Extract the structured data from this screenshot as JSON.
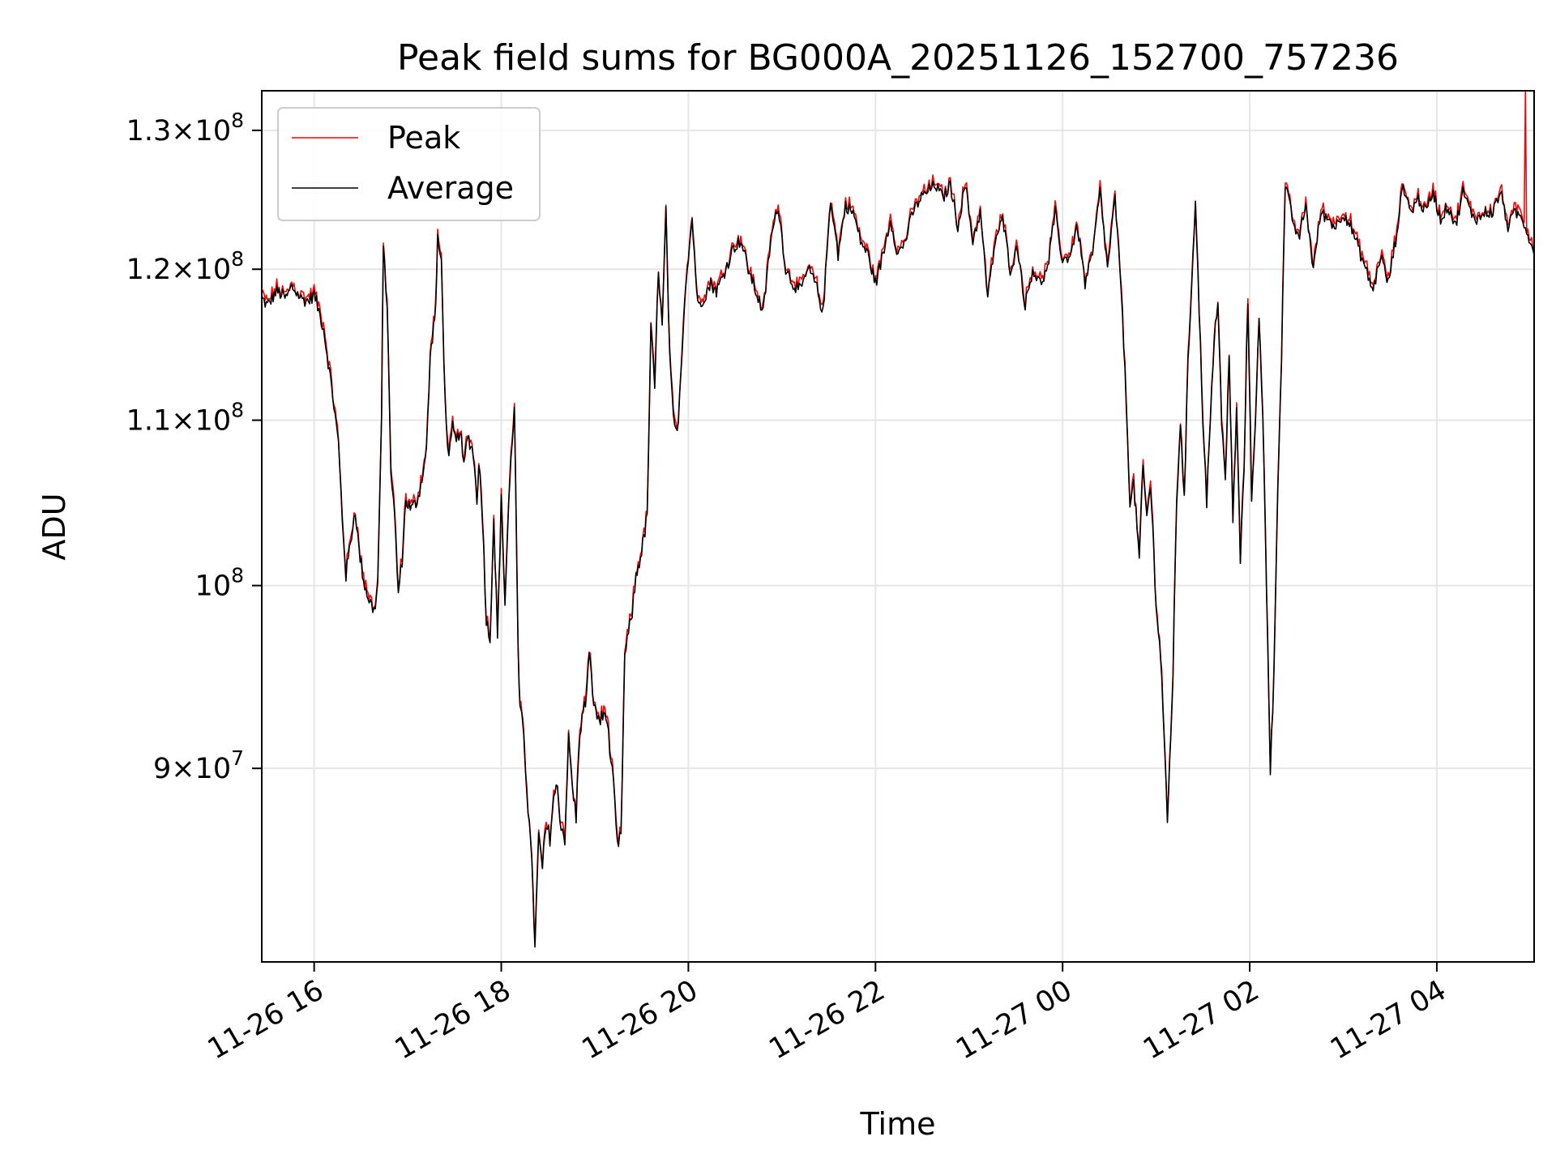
{
  "chart_data": {
    "type": "line",
    "title": "Peak field sums for BG000A_20251126_152700_757236",
    "xlabel": "Time",
    "ylabel": "ADU",
    "yscale": "log",
    "grid": true,
    "legend_position": "top-left",
    "x_range_hours": [
      -0.28,
      6.52
    ],
    "ylim": [
      80500000,
      133000000
    ],
    "x_ticks": [
      {
        "label": "11-26 16",
        "hour": 0
      },
      {
        "label": "11-26 18",
        "hour": 1
      },
      {
        "label": "11-26 20",
        "hour": 2
      },
      {
        "label": "11-26 22",
        "hour": 3
      },
      {
        "label": "11-27 00",
        "hour": 4
      },
      {
        "label": "11-27 02",
        "hour": 5
      },
      {
        "label": "11-27 04",
        "hour": 6
      }
    ],
    "y_ticks": [
      {
        "value": 90000000,
        "base": "9",
        "times": "×10",
        "exp": "7"
      },
      {
        "value": 100000000,
        "base": "",
        "times": "10",
        "exp": "8"
      },
      {
        "value": 110000000,
        "base": "1.1",
        "times": "×10",
        "exp": "8"
      },
      {
        "value": 120000000,
        "base": "1.2",
        "times": "×10",
        "exp": "8"
      },
      {
        "value": 130000000,
        "base": "1.3",
        "times": "×10",
        "exp": "8"
      }
    ],
    "x_unit_note": "x values are in units of 2 hours since 11-26 16:00",
    "series": [
      {
        "name": "Peak",
        "color": "#ff0000"
      },
      {
        "name": "Average",
        "color": "#000000"
      }
    ],
    "average_points": [
      [
        -0.28,
        118.0
      ],
      [
        -0.25,
        117.5
      ],
      [
        -0.2,
        118.5
      ],
      [
        -0.15,
        118.0
      ],
      [
        -0.12,
        118.8
      ],
      [
        -0.07,
        118.0
      ],
      [
        -0.03,
        117.8
      ],
      [
        0.0,
        118.3
      ],
      [
        0.05,
        116.0
      ],
      [
        0.1,
        111.5
      ],
      [
        0.13,
        108.5
      ],
      [
        0.15,
        104.0
      ],
      [
        0.17,
        100.6
      ],
      [
        0.2,
        103.0
      ],
      [
        0.22,
        104.5
      ],
      [
        0.24,
        102.0
      ],
      [
        0.27,
        100.0
      ],
      [
        0.3,
        99.0
      ],
      [
        0.32,
        98.5
      ],
      [
        0.34,
        100.0
      ],
      [
        0.36,
        110.0
      ],
      [
        0.37,
        121.5
      ],
      [
        0.39,
        117.5
      ],
      [
        0.41,
        107.0
      ],
      [
        0.43,
        104.0
      ],
      [
        0.45,
        99.5
      ],
      [
        0.47,
        101.5
      ],
      [
        0.49,
        105.0
      ],
      [
        0.52,
        104.5
      ],
      [
        0.55,
        105.0
      ],
      [
        0.57,
        106.0
      ],
      [
        0.6,
        108.0
      ],
      [
        0.62,
        114.0
      ],
      [
        0.65,
        117.5
      ],
      [
        0.66,
        122.0
      ],
      [
        0.68,
        120.5
      ],
      [
        0.7,
        111.0
      ],
      [
        0.72,
        107.5
      ],
      [
        0.74,
        109.5
      ],
      [
        0.76,
        108.5
      ],
      [
        0.78,
        109.5
      ],
      [
        0.8,
        107.0
      ],
      [
        0.82,
        109.0
      ],
      [
        0.85,
        108.0
      ],
      [
        0.87,
        105.0
      ],
      [
        0.88,
        107.5
      ],
      [
        0.9,
        104.0
      ],
      [
        0.92,
        98.0
      ],
      [
        0.94,
        97.0
      ],
      [
        0.96,
        104.0
      ],
      [
        0.98,
        97.0
      ],
      [
        1.0,
        105.0
      ],
      [
        1.02,
        99.0
      ],
      [
        1.04,
        105.0
      ],
      [
        1.07,
        111.0
      ],
      [
        1.09,
        96.0
      ],
      [
        1.1,
        93.0
      ],
      [
        1.11,
        92.5
      ],
      [
        1.12,
        92.0
      ],
      [
        1.13,
        90.0
      ],
      [
        1.15,
        87.0
      ],
      [
        1.17,
        84.0
      ],
      [
        1.18,
        81.0
      ],
      [
        1.2,
        86.5
      ],
      [
        1.22,
        85.0
      ],
      [
        1.24,
        87.0
      ],
      [
        1.26,
        86.5
      ],
      [
        1.28,
        88.5
      ],
      [
        1.3,
        89.0
      ],
      [
        1.32,
        87.0
      ],
      [
        1.34,
        86.5
      ],
      [
        1.36,
        91.5
      ],
      [
        1.38,
        89.0
      ],
      [
        1.4,
        87.5
      ],
      [
        1.42,
        92.0
      ],
      [
        1.45,
        93.5
      ],
      [
        1.47,
        96.0
      ],
      [
        1.5,
        93.0
      ],
      [
        1.53,
        92.5
      ],
      [
        1.56,
        93.0
      ],
      [
        1.58,
        91.0
      ],
      [
        1.6,
        89.0
      ],
      [
        1.62,
        86.0
      ],
      [
        1.64,
        86.5
      ],
      [
        1.66,
        96.0
      ],
      [
        1.7,
        98.5
      ],
      [
        1.72,
        100.5
      ],
      [
        1.75,
        102.0
      ],
      [
        1.78,
        104.0
      ],
      [
        1.8,
        116.0
      ],
      [
        1.82,
        112.0
      ],
      [
        1.84,
        120.0
      ],
      [
        1.86,
        116.0
      ],
      [
        1.88,
        124.0
      ],
      [
        1.9,
        114.0
      ],
      [
        1.92,
        110.0
      ],
      [
        1.94,
        109.0
      ],
      [
        1.96,
        113.0
      ],
      [
        1.98,
        118.0
      ],
      [
        2.0,
        121.0
      ],
      [
        2.02,
        123.5
      ],
      [
        2.05,
        117.5
      ],
      [
        2.08,
        118.0
      ],
      [
        2.12,
        119.0
      ],
      [
        2.15,
        118.5
      ],
      [
        2.2,
        120.0
      ],
      [
        2.24,
        121.5
      ],
      [
        2.28,
        122.0
      ],
      [
        2.32,
        120.0
      ],
      [
        2.36,
        118.5
      ],
      [
        2.4,
        117.0
      ],
      [
        2.44,
        122.0
      ],
      [
        2.48,
        124.5
      ],
      [
        2.52,
        120.0
      ],
      [
        2.56,
        119.0
      ],
      [
        2.6,
        118.5
      ],
      [
        2.64,
        120.0
      ],
      [
        2.68,
        119.0
      ],
      [
        2.72,
        117.0
      ],
      [
        2.76,
        125.0
      ],
      [
        2.8,
        121.0
      ],
      [
        2.84,
        124.5
      ],
      [
        2.88,
        124.0
      ],
      [
        2.92,
        122.0
      ],
      [
        2.96,
        121.0
      ],
      [
        3.0,
        119.0
      ],
      [
        3.04,
        121.0
      ],
      [
        3.08,
        123.5
      ],
      [
        3.12,
        121.0
      ],
      [
        3.16,
        122.0
      ],
      [
        3.2,
        124.0
      ],
      [
        3.24,
        125.0
      ],
      [
        3.28,
        125.5
      ],
      [
        3.32,
        126.0
      ],
      [
        3.36,
        125.0
      ],
      [
        3.4,
        126.0
      ],
      [
        3.44,
        123.0
      ],
      [
        3.48,
        126.0
      ],
      [
        3.52,
        122.0
      ],
      [
        3.56,
        124.0
      ],
      [
        3.6,
        118.0
      ],
      [
        3.64,
        122.0
      ],
      [
        3.68,
        123.5
      ],
      [
        3.72,
        120.0
      ],
      [
        3.76,
        121.5
      ],
      [
        3.8,
        117.5
      ],
      [
        3.84,
        120.0
      ],
      [
        3.88,
        119.0
      ],
      [
        3.92,
        120.0
      ],
      [
        3.96,
        124.0
      ],
      [
        4.0,
        120.5
      ],
      [
        4.04,
        121.0
      ],
      [
        4.08,
        123.0
      ],
      [
        4.12,
        119.0
      ],
      [
        4.16,
        121.0
      ],
      [
        4.2,
        125.5
      ],
      [
        4.24,
        120.0
      ],
      [
        4.28,
        125.0
      ],
      [
        4.32,
        117.0
      ],
      [
        4.36,
        105.0
      ],
      [
        4.38,
        106.0
      ],
      [
        4.41,
        101.5
      ],
      [
        4.43,
        107.0
      ],
      [
        4.45,
        104.0
      ],
      [
        4.47,
        106.0
      ],
      [
        4.5,
        99.0
      ],
      [
        4.53,
        95.0
      ],
      [
        4.56,
        87.0
      ],
      [
        4.59,
        95.0
      ],
      [
        4.61,
        105.0
      ],
      [
        4.63,
        110.0
      ],
      [
        4.65,
        105.0
      ],
      [
        4.67,
        113.5
      ],
      [
        4.69,
        119.0
      ],
      [
        4.71,
        125.0
      ],
      [
        4.73,
        117.0
      ],
      [
        4.75,
        110.0
      ],
      [
        4.77,
        105.0
      ],
      [
        4.79,
        110.0
      ],
      [
        4.81,
        115.0
      ],
      [
        4.83,
        118.0
      ],
      [
        4.85,
        110.0
      ],
      [
        4.87,
        106.0
      ],
      [
        4.89,
        114.0
      ],
      [
        4.91,
        104.0
      ],
      [
        4.93,
        110.5
      ],
      [
        4.95,
        101.5
      ],
      [
        4.97,
        107.0
      ],
      [
        4.99,
        118.0
      ],
      [
        5.01,
        105.0
      ],
      [
        5.03,
        110.0
      ],
      [
        5.05,
        116.5
      ],
      [
        5.07,
        110.0
      ],
      [
        5.09,
        100.0
      ],
      [
        5.11,
        90.0
      ],
      [
        5.13,
        95.0
      ],
      [
        5.15,
        106.0
      ],
      [
        5.17,
        114.0
      ],
      [
        5.19,
        126.0
      ],
      [
        5.22,
        124.0
      ],
      [
        5.26,
        122.0
      ],
      [
        5.3,
        124.5
      ],
      [
        5.34,
        120.0
      ],
      [
        5.38,
        124.0
      ],
      [
        5.42,
        123.5
      ],
      [
        5.46,
        123.0
      ],
      [
        5.5,
        124.0
      ],
      [
        5.54,
        123.0
      ],
      [
        5.58,
        121.5
      ],
      [
        5.62,
        120.0
      ],
      [
        5.66,
        118.5
      ],
      [
        5.7,
        121.0
      ],
      [
        5.74,
        119.0
      ],
      [
        5.78,
        122.0
      ],
      [
        5.82,
        126.0
      ],
      [
        5.86,
        124.0
      ],
      [
        5.9,
        125.0
      ],
      [
        5.94,
        124.0
      ],
      [
        5.98,
        125.5
      ],
      [
        6.02,
        123.5
      ],
      [
        6.06,
        124.5
      ],
      [
        6.1,
        123.0
      ],
      [
        6.14,
        125.5
      ],
      [
        6.18,
        124.0
      ],
      [
        6.22,
        123.5
      ],
      [
        6.26,
        124.0
      ],
      [
        6.3,
        124.0
      ],
      [
        6.34,
        125.5
      ],
      [
        6.38,
        123.0
      ],
      [
        6.42,
        124.0
      ],
      [
        6.46,
        123.5
      ],
      [
        6.5,
        122.0
      ],
      [
        6.52,
        121.0
      ]
    ]
  },
  "legend": {
    "peak_label": "Peak",
    "average_label": "Average"
  }
}
